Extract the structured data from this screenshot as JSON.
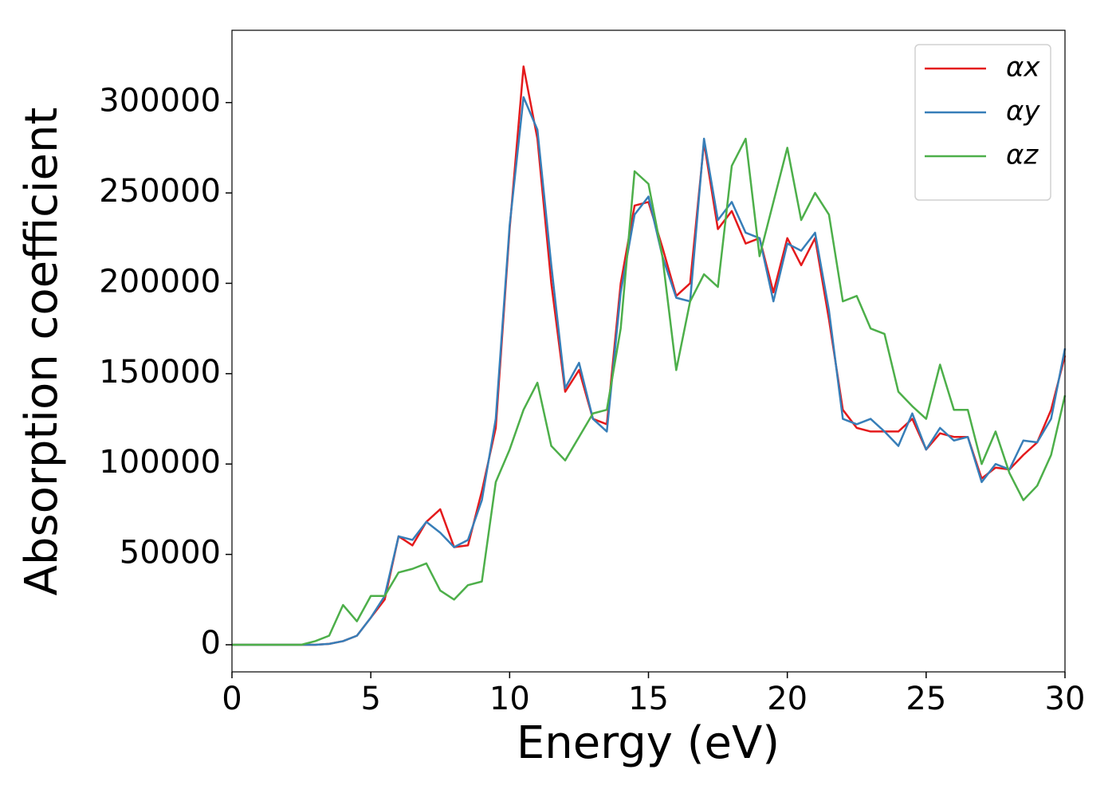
{
  "chart_data": {
    "type": "line",
    "xlabel": "Energy (eV)",
    "ylabel": "Absorption coefficient",
    "x": [
      0,
      0.5,
      1,
      1.5,
      2,
      2.5,
      3,
      3.5,
      4,
      4.5,
      5,
      5.5,
      6,
      6.5,
      7,
      7.5,
      8,
      8.5,
      9,
      9.5,
      10,
      10.5,
      11,
      11.5,
      12,
      12.5,
      13,
      13.5,
      14,
      14.5,
      15,
      15.5,
      16,
      16.5,
      17,
      17.5,
      18,
      18.5,
      19,
      19.5,
      20,
      20.5,
      21,
      21.5,
      22,
      22.5,
      23,
      23.5,
      24,
      24.5,
      25,
      25.5,
      26,
      26.5,
      27,
      27.5,
      28,
      28.5,
      29,
      29.5,
      30
    ],
    "series": [
      {
        "name": "αx",
        "color": "#e41a1c",
        "values": [
          0,
          0,
          0,
          0,
          0,
          0,
          0,
          500,
          2000,
          5000,
          15000,
          25000,
          60000,
          55000,
          68000,
          75000,
          54000,
          55000,
          85000,
          120000,
          230000,
          320000,
          280000,
          200000,
          140000,
          152000,
          125000,
          122000,
          200000,
          243000,
          245000,
          220000,
          193000,
          200000,
          278000,
          230000,
          240000,
          222000,
          225000,
          195000,
          225000,
          210000,
          225000,
          180000,
          130000,
          120000,
          118000,
          118000,
          118000,
          125000,
          108000,
          117000,
          115000,
          115000,
          92000,
          98000,
          97000,
          105000,
          112000,
          130000,
          160000
        ]
      },
      {
        "name": "αy",
        "color": "#377eb8",
        "values": [
          0,
          0,
          0,
          0,
          0,
          0,
          0,
          500,
          2000,
          5000,
          15000,
          27000,
          60000,
          58000,
          68000,
          62000,
          54000,
          58000,
          80000,
          125000,
          232000,
          303000,
          285000,
          210000,
          142000,
          156000,
          125000,
          118000,
          195000,
          238000,
          248000,
          215000,
          192000,
          190000,
          280000,
          235000,
          245000,
          228000,
          225000,
          190000,
          222000,
          218000,
          228000,
          185000,
          125000,
          122000,
          125000,
          118000,
          110000,
          128000,
          108000,
          120000,
          113000,
          115000,
          90000,
          100000,
          97000,
          113000,
          112000,
          125000,
          164000
        ]
      },
      {
        "name": "αz",
        "color": "#4daf4a",
        "values": [
          0,
          0,
          0,
          0,
          0,
          0,
          2000,
          5000,
          22000,
          13000,
          27000,
          27000,
          40000,
          42000,
          45000,
          30000,
          25000,
          33000,
          35000,
          90000,
          108000,
          130000,
          145000,
          110000,
          102000,
          115000,
          128000,
          130000,
          175000,
          262000,
          255000,
          215000,
          152000,
          190000,
          205000,
          198000,
          265000,
          280000,
          215000,
          245000,
          275000,
          235000,
          250000,
          238000,
          190000,
          193000,
          175000,
          172000,
          140000,
          132000,
          125000,
          155000,
          130000,
          130000,
          100000,
          118000,
          95000,
          80000,
          88000,
          105000,
          138000
        ]
      }
    ],
    "xlim": [
      0,
      30
    ],
    "xticks": [
      0,
      5,
      10,
      15,
      20,
      25,
      30
    ],
    "ylim": [
      -15000,
      340000
    ],
    "yticks": [
      0,
      50000,
      100000,
      150000,
      200000,
      250000,
      300000
    ],
    "legend": "upper right"
  }
}
